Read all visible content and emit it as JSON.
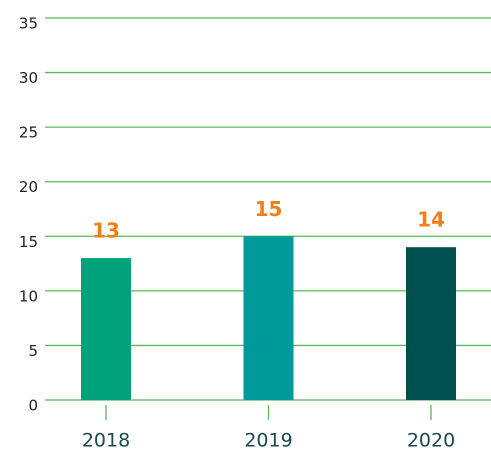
{
  "chart_data": {
    "type": "bar",
    "categories": [
      "2018",
      "2019",
      "2020"
    ],
    "values": [
      13,
      15,
      14
    ],
    "colors": [
      "#00a27a",
      "#009a9a",
      "#005050"
    ],
    "ylim": [
      0,
      35
    ],
    "yticks": [
      0,
      5,
      10,
      15,
      20,
      25,
      30,
      35
    ],
    "grid": true
  }
}
